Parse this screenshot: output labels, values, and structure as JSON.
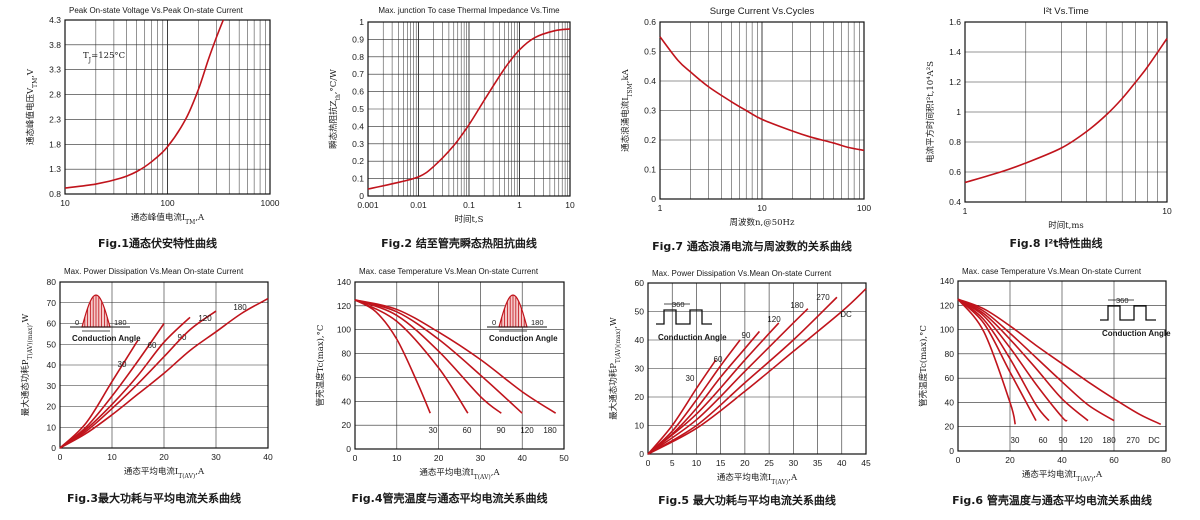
{
  "chart_data": [
    {
      "id": "fig1",
      "type": "line",
      "title": "Peak On-state Voltage Vs.Peak On-state Current",
      "caption": "Fig.1通态伏安特性曲线",
      "xlabel": "通态峰值电流I_TM,A",
      "ylabel": "通态峰值电压V_TM,V",
      "xscale": "log",
      "xlim": [
        10,
        1000
      ],
      "ylim": [
        0.8,
        4.3
      ],
      "xticks": [
        "10",
        "100",
        "1000"
      ],
      "yticks": [
        "0.8",
        "1.3",
        "1.8",
        "2.3",
        "2.8",
        "3.3",
        "3.8",
        "4.3"
      ],
      "annotation": "T_J=125°C",
      "series": [
        {
          "x": [
            10,
            20,
            35,
            50,
            70,
            100,
            150,
            200,
            250,
            300,
            350
          ],
          "y": [
            0.92,
            1.0,
            1.12,
            1.25,
            1.45,
            1.75,
            2.3,
            2.9,
            3.5,
            3.95,
            4.3
          ]
        }
      ]
    },
    {
      "id": "fig2",
      "type": "line",
      "title": "Max. junction To case Thermal Impedance Vs.Time",
      "caption": "Fig.2 结至管壳瞬态热阻抗曲线",
      "xlabel": "时间t,S",
      "ylabel": "瞬态热阻抗Z_th,°C/W",
      "xscale": "log",
      "xlim": [
        0.001,
        10
      ],
      "ylim": [
        0,
        1
      ],
      "xticks": [
        "0.001",
        "0.01",
        "0.1",
        "1",
        "10"
      ],
      "yticks": [
        "0",
        "0.1",
        "0.2",
        "0.3",
        "0.4",
        "0.5",
        "0.6",
        "0.7",
        "0.8",
        "0.9",
        "1"
      ],
      "series": [
        {
          "x": [
            0.001,
            0.003,
            0.01,
            0.02,
            0.05,
            0.1,
            0.2,
            0.5,
            1,
            2,
            5,
            10
          ],
          "y": [
            0.04,
            0.07,
            0.11,
            0.17,
            0.29,
            0.41,
            0.55,
            0.73,
            0.84,
            0.91,
            0.95,
            0.96
          ]
        }
      ]
    },
    {
      "id": "fig7",
      "type": "line",
      "title": "Surge Current Vs.Cycles",
      "caption": "Fig.7 通态浪涌电流与周波数的关系曲线",
      "xlabel": "周波数n,@50Hz",
      "ylabel": "通态浪涌电流I_TSM,kA",
      "xscale": "log",
      "xlim": [
        1,
        100
      ],
      "ylim": [
        0,
        0.6
      ],
      "xticks": [
        "1",
        "10",
        "100"
      ],
      "yticks": [
        "0",
        "0.1",
        "0.2",
        "0.3",
        "0.4",
        "0.5",
        "0.6"
      ],
      "series": [
        {
          "x": [
            1,
            1.5,
            2,
            3,
            5,
            7,
            10,
            20,
            30,
            50,
            70,
            100
          ],
          "y": [
            0.55,
            0.47,
            0.43,
            0.38,
            0.33,
            0.3,
            0.27,
            0.23,
            0.21,
            0.19,
            0.175,
            0.165
          ]
        }
      ]
    },
    {
      "id": "fig8",
      "type": "line",
      "title": "I²t Vs.Time",
      "caption": "Fig.8 I²t特性曲线",
      "xlabel": "时间t,ms",
      "ylabel": "电流平方时间积I²t,10⁴A²S",
      "xscale": "log",
      "xlim": [
        1,
        10
      ],
      "ylim": [
        0.4,
        1.6
      ],
      "xticks": [
        "1",
        "10"
      ],
      "yticks": [
        "0.4",
        "0.6",
        "0.8",
        "1",
        "1.2",
        "1.4",
        "1.6"
      ],
      "series": [
        {
          "x": [
            1,
            1.5,
            2,
            3,
            4,
            5,
            6,
            7,
            8,
            10
          ],
          "y": [
            0.53,
            0.6,
            0.66,
            0.76,
            0.87,
            0.98,
            1.09,
            1.2,
            1.3,
            1.49
          ]
        }
      ]
    },
    {
      "id": "fig3",
      "type": "line",
      "title": "Max. Power Dissipation Vs.Mean On-state Current",
      "caption": "Fig.3最大功耗与平均电流关系曲线",
      "xlabel": "通态平均电流I_T(AV),A",
      "ylabel": "最大通态功耗P_T(AV)(max),W",
      "xlim": [
        0,
        40
      ],
      "ylim": [
        0,
        80
      ],
      "xticks": [
        "0",
        "10",
        "20",
        "30",
        "40"
      ],
      "yticks": [
        "0",
        "10",
        "20",
        "30",
        "40",
        "50",
        "60",
        "70",
        "80"
      ],
      "inset": {
        "type": "sine",
        "labels": [
          "0",
          "180"
        ],
        "text": "Conduction Angle"
      },
      "series": [
        {
          "name": "30",
          "x": [
            0,
            5,
            10,
            15
          ],
          "y": [
            0,
            12,
            32,
            52
          ]
        },
        {
          "name": "60",
          "x": [
            0,
            5,
            10,
            15,
            20
          ],
          "y": [
            0,
            10,
            25,
            42,
            60
          ]
        },
        {
          "name": "90",
          "x": [
            0,
            5,
            10,
            15,
            20,
            25
          ],
          "y": [
            0,
            9,
            21,
            35,
            51,
            63
          ]
        },
        {
          "name": "120",
          "x": [
            0,
            5,
            10,
            15,
            20,
            25,
            30
          ],
          "y": [
            0,
            8,
            19,
            31,
            44,
            57,
            66
          ]
        },
        {
          "name": "180",
          "x": [
            0,
            5,
            10,
            15,
            20,
            25,
            30,
            35,
            40
          ],
          "y": [
            0,
            7,
            16,
            26,
            36,
            47,
            56,
            65,
            72
          ]
        }
      ]
    },
    {
      "id": "fig4",
      "type": "line",
      "title": "Max. case Temperature Vs.Mean On-state Current",
      "caption": "Fig.4管壳温度与通态平均电流关系曲线",
      "xlabel": "通态平均电流I_T(AV),A",
      "ylabel": "管壳温度Tc(max),°C",
      "xlim": [
        0,
        50
      ],
      "ylim": [
        0,
        140
      ],
      "xticks": [
        "0",
        "10",
        "20",
        "30",
        "40",
        "50"
      ],
      "yticks": [
        "0",
        "20",
        "40",
        "60",
        "80",
        "100",
        "120",
        "140"
      ],
      "inset": {
        "type": "sine",
        "labels": [
          "0",
          "180"
        ],
        "text": "Conduction Angle"
      },
      "series": [
        {
          "name": "30",
          "x": [
            0,
            5,
            10,
            15,
            18
          ],
          "y": [
            125,
            115,
            92,
            55,
            30
          ]
        },
        {
          "name": "60",
          "x": [
            0,
            10,
            20,
            27
          ],
          "y": [
            125,
            107,
            68,
            30
          ]
        },
        {
          "name": "90",
          "x": [
            0,
            10,
            20,
            30,
            35
          ],
          "y": [
            125,
            112,
            82,
            44,
            30
          ]
        },
        {
          "name": "120",
          "x": [
            0,
            10,
            20,
            30,
            40
          ],
          "y": [
            125,
            115,
            92,
            62,
            30
          ]
        },
        {
          "name": "180",
          "x": [
            0,
            10,
            20,
            30,
            40,
            48
          ],
          "y": [
            125,
            117,
            98,
            75,
            48,
            30
          ]
        }
      ]
    },
    {
      "id": "fig5",
      "type": "line",
      "title": "Max. Power Dissipation Vs.Mean On-state Current",
      "caption": "Fig.5 最大功耗与平均电流关系曲线",
      "xlabel": "通态平均电流I_T(AV),A",
      "ylabel": "最大通态功耗P_T(AV)(max),W",
      "xlim": [
        0,
        45
      ],
      "ylim": [
        0,
        60
      ],
      "xticks": [
        "0",
        "5",
        "10",
        "15",
        "20",
        "25",
        "30",
        "35",
        "40",
        "45"
      ],
      "yticks": [
        "0",
        "10",
        "20",
        "30",
        "40",
        "50",
        "60"
      ],
      "inset": {
        "type": "square",
        "labels": [
          "360"
        ],
        "text": "Conduction Angle"
      },
      "series": [
        {
          "name": "30",
          "x": [
            0,
            5,
            10,
            14
          ],
          "y": [
            0,
            10,
            23,
            33
          ]
        },
        {
          "name": "60",
          "x": [
            0,
            5,
            10,
            15,
            19
          ],
          "y": [
            0,
            8,
            19,
            31,
            40
          ]
        },
        {
          "name": "90",
          "x": [
            0,
            5,
            10,
            15,
            20,
            23
          ],
          "y": [
            0,
            7,
            16,
            27,
            37,
            43
          ]
        },
        {
          "name": "120",
          "x": [
            0,
            10,
            20,
            27
          ],
          "y": [
            0,
            14,
            33,
            46
          ]
        },
        {
          "name": "180",
          "x": [
            0,
            10,
            20,
            30,
            33
          ],
          "y": [
            0,
            12,
            29,
            46,
            51
          ]
        },
        {
          "name": "270",
          "x": [
            0,
            10,
            20,
            30,
            39
          ],
          "y": [
            0,
            10,
            25,
            40,
            55
          ]
        },
        {
          "name": "DC",
          "x": [
            0,
            10,
            20,
            30,
            40,
            45
          ],
          "y": [
            0,
            9,
            22,
            36,
            50,
            58
          ]
        }
      ]
    },
    {
      "id": "fig6",
      "type": "line",
      "title": "Max. case Temperature Vs.Mean On-state Current",
      "caption": "Fig.6 管壳温度与通态平均电流关系曲线",
      "xlabel": "通态平均电流I_T(AV),A",
      "ylabel": "管壳温度Tc(max),°C",
      "xlim": [
        0,
        80
      ],
      "ylim": [
        0,
        140
      ],
      "xticks": [
        "0",
        "20",
        "40",
        "60",
        "80"
      ],
      "yticks": [
        "0",
        "20",
        "40",
        "60",
        "80",
        "100",
        "120",
        "140"
      ],
      "inset": {
        "type": "square",
        "labels": [
          "360"
        ],
        "text": "Conduction Angle"
      },
      "series": [
        {
          "name": "30",
          "x": [
            0,
            10,
            20,
            22
          ],
          "y": [
            125,
            98,
            40,
            22
          ]
        },
        {
          "name": "60",
          "x": [
            0,
            10,
            20,
            30
          ],
          "y": [
            125,
            105,
            65,
            25
          ]
        },
        {
          "name": "90",
          "x": [
            0,
            10,
            20,
            30,
            35
          ],
          "y": [
            125,
            108,
            76,
            38,
            25
          ]
        },
        {
          "name": "120",
          "x": [
            0,
            10,
            20,
            30,
            40,
            42
          ],
          "y": [
            125,
            111,
            85,
            55,
            28,
            25
          ]
        },
        {
          "name": "180",
          "x": [
            0,
            10,
            20,
            30,
            40,
            50
          ],
          "y": [
            125,
            113,
            92,
            68,
            43,
            25
          ]
        },
        {
          "name": "270",
          "x": [
            0,
            10,
            20,
            30,
            40,
            50,
            60
          ],
          "y": [
            125,
            115,
            97,
            77,
            57,
            38,
            25
          ]
        },
        {
          "name": "DC",
          "x": [
            0,
            10,
            20,
            30,
            40,
            50,
            60,
            70,
            78
          ],
          "y": [
            125,
            117,
            103,
            87,
            72,
            57,
            43,
            30,
            22
          ]
        }
      ]
    }
  ]
}
